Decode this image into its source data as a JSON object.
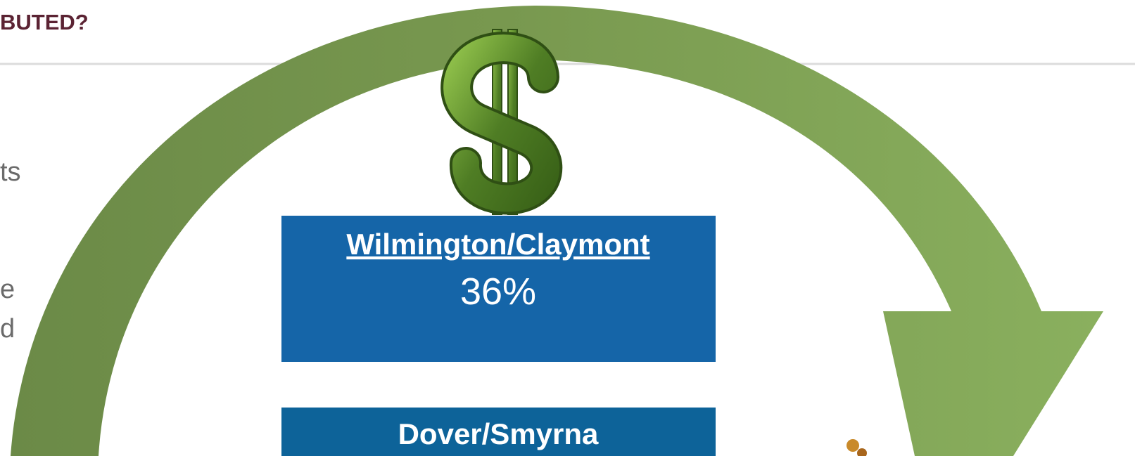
{
  "header": {
    "title": "BUTED?"
  },
  "body": {
    "lines": [
      "ts",
      "e",
      "d"
    ]
  },
  "regions": [
    {
      "name": "Wilmington/Claymont",
      "share": "36%"
    },
    {
      "name": "Dover/Smyrna"
    }
  ]
}
